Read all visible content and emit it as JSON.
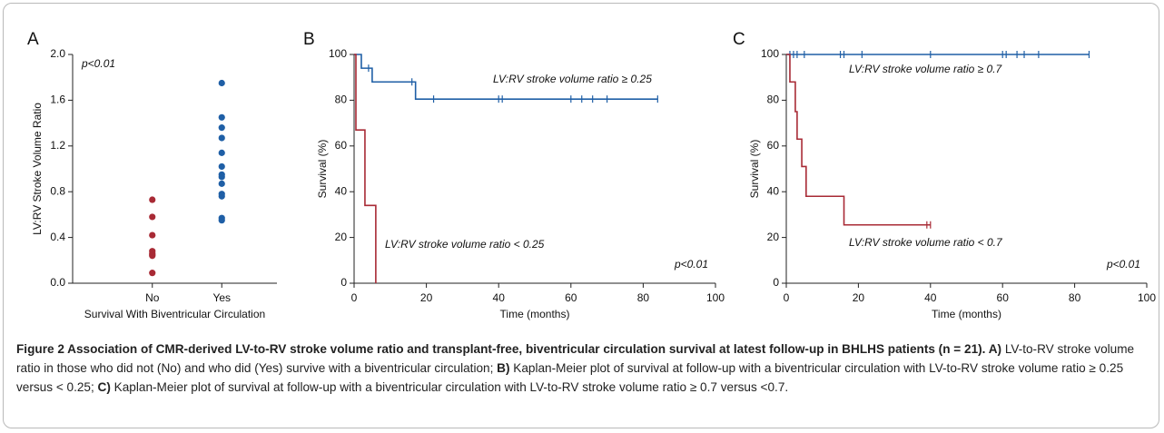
{
  "chart_data": [
    {
      "type": "scatter",
      "panel": "A",
      "annotation": "p<0.01",
      "ylabel": "LV:RV Stroke Volume Ratio",
      "xlabel": "Survival With Biventricular Circulation",
      "categories": [
        "No",
        "Yes"
      ],
      "colors": [
        "#a82a35",
        "#1f5fa6"
      ],
      "values": [
        [
          0.73,
          0.58,
          0.42,
          0.28,
          0.26,
          0.25,
          0.24,
          0.09
        ],
        [
          1.75,
          1.45,
          1.36,
          1.27,
          1.14,
          1.02,
          0.95,
          0.93,
          0.87,
          0.78,
          0.76,
          0.57,
          0.55
        ]
      ],
      "ylim": [
        0,
        2
      ],
      "yticks": [
        {
          "value": 0,
          "label": "0.0"
        },
        0.4,
        0.8,
        1.2,
        1.6,
        {
          "value": 2,
          "label": "2.0"
        }
      ]
    },
    {
      "type": "line",
      "step": true,
      "panel": "B",
      "annotation": "p<0.01",
      "ylabel": "Survival (%)",
      "xlabel": "Time (months)",
      "series": [
        {
          "name": "LV:RV stroke volume ratio ≥ 0.25",
          "color": "#1f5fa6",
          "x": [
            0,
            2,
            5,
            17,
            84
          ],
          "values": [
            100,
            94,
            88,
            80.5,
            80.5
          ],
          "censored": {
            "x": [
              4,
              16,
              22,
              40,
              41,
              60,
              63,
              66,
              70,
              84
            ],
            "values": [
              94,
              88,
              80.5,
              80.5,
              80.5,
              80.5,
              80.5,
              80.5,
              80.5,
              80.5
            ]
          }
        },
        {
          "name": "LV:RV stroke volume ratio < 0.25",
          "color": "#a82a35",
          "x": [
            0,
            0.5,
            3,
            6
          ],
          "values": [
            100,
            67,
            34,
            0
          ]
        }
      ],
      "xlim": [
        0,
        100
      ],
      "xticks": [
        0,
        20,
        40,
        60,
        80,
        100
      ],
      "ylim": [
        0,
        100
      ],
      "yticks": [
        0,
        20,
        40,
        60,
        80,
        100
      ]
    },
    {
      "type": "line",
      "step": true,
      "panel": "C",
      "annotation": "p<0.01",
      "ylabel": "Survival (%)",
      "xlabel": "Time (months)",
      "series": [
        {
          "name": "LV:RV stroke volume ratio ≥ 0.7",
          "color": "#1f5fa6",
          "x": [
            0,
            84
          ],
          "values": [
            100,
            100
          ],
          "censored": {
            "x": [
              1,
              2,
              3,
              5,
              15,
              16,
              21,
              40,
              60,
              61,
              64,
              66,
              70,
              84
            ],
            "values": [
              100,
              100,
              100,
              100,
              100,
              100,
              100,
              100,
              100,
              100,
              100,
              100,
              100,
              100
            ]
          }
        },
        {
          "name": "LV:RV stroke volume ratio < 0.7",
          "color": "#a82a35",
          "x": [
            0,
            1,
            2.5,
            3,
            4.3,
            5.5,
            16,
            40
          ],
          "values": [
            100,
            88,
            75,
            63,
            51,
            38,
            25.5,
            25.5
          ],
          "censored": {
            "x": [
              39,
              40
            ],
            "values": [
              25.5,
              25.5
            ]
          }
        }
      ],
      "xlim": [
        0,
        100
      ],
      "xticks": [
        0,
        20,
        40,
        60,
        80,
        100
      ],
      "ylim": [
        0,
        100
      ],
      "yticks": [
        0,
        20,
        40,
        60,
        80,
        100
      ]
    }
  ],
  "caption": {
    "parts": [
      {
        "text": "Figure 2 Association of CMR-derived LV-to-RV stroke volume ratio and transplant-free, biventricular circulation survival at latest follow-up in BHLHS patients (n = 21). A)",
        "bold": true
      },
      {
        "text": " LV-to-RV stroke volume ratio in those who did not (No) and who did (Yes) survive with a biventricular circulation; ",
        "bold": false
      },
      {
        "text": "B)",
        "bold": true
      },
      {
        "text": " Kaplan-Meier plot of survival at follow-up with a biventricular circulation with LV-to-RV stroke volume ratio ≥ 0.25 versus < 0.25; ",
        "bold": false
      },
      {
        "text": "C)",
        "bold": true
      },
      {
        "text": " Kaplan-Meier plot of survival at follow-up with a biventricular circulation with LV-to-RV stroke volume ratio ≥ 0.7 versus <0.7.",
        "bold": false
      }
    ]
  }
}
